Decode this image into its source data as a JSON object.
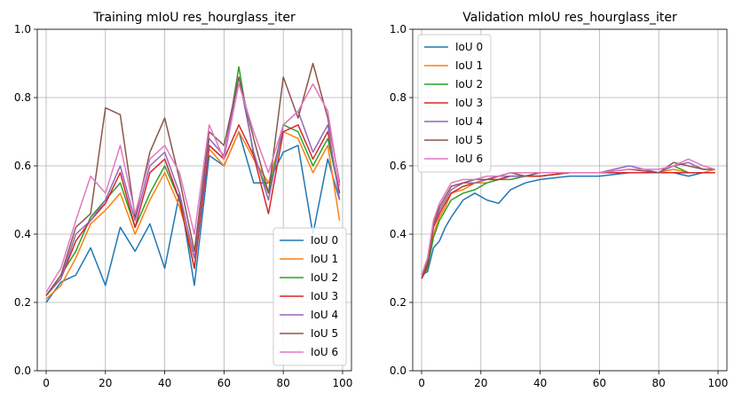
{
  "chart_data": [
    {
      "type": "line",
      "title": "Training mIoU res_hourglass_iter",
      "xlim": [
        -3,
        103
      ],
      "ylim": [
        0,
        1
      ],
      "xticks": [
        0,
        20,
        40,
        60,
        80,
        100
      ],
      "yticks": [
        0.0,
        0.2,
        0.4,
        0.6,
        0.8,
        1.0
      ],
      "ytick_labels": [
        "0.0",
        "0.2",
        "0.4",
        "0.6",
        "0.8",
        "1.0"
      ],
      "grid": true,
      "legend_position": "lower-right",
      "x": [
        0,
        5,
        10,
        15,
        20,
        25,
        30,
        35,
        40,
        45,
        50,
        55,
        60,
        65,
        70,
        75,
        80,
        85,
        90,
        95,
        99
      ],
      "series": [
        {
          "name": "IoU 0",
          "color": "#1f77b4",
          "values": [
            0.2,
            0.26,
            0.28,
            0.36,
            0.25,
            0.42,
            0.35,
            0.43,
            0.3,
            0.52,
            0.25,
            0.63,
            0.6,
            0.7,
            0.55,
            0.55,
            0.64,
            0.66,
            0.4,
            0.62,
            0.5
          ]
        },
        {
          "name": "IoU 1",
          "color": "#ff7f0e",
          "values": [
            0.21,
            0.25,
            0.33,
            0.43,
            0.47,
            0.52,
            0.4,
            0.5,
            0.58,
            0.48,
            0.33,
            0.65,
            0.6,
            0.7,
            0.62,
            0.55,
            0.7,
            0.68,
            0.58,
            0.66,
            0.44
          ]
        },
        {
          "name": "IoU 2",
          "color": "#2ca02c",
          "values": [
            0.22,
            0.28,
            0.35,
            0.45,
            0.5,
            0.55,
            0.42,
            0.52,
            0.6,
            0.5,
            0.3,
            0.66,
            0.62,
            0.89,
            0.63,
            0.52,
            0.72,
            0.7,
            0.6,
            0.68,
            0.52
          ]
        },
        {
          "name": "IoU 3",
          "color": "#d62728",
          "values": [
            0.22,
            0.27,
            0.38,
            0.44,
            0.49,
            0.58,
            0.42,
            0.58,
            0.62,
            0.5,
            0.3,
            0.66,
            0.62,
            0.72,
            0.63,
            0.46,
            0.7,
            0.72,
            0.62,
            0.7,
            0.52
          ]
        },
        {
          "name": "IoU 4",
          "color": "#9467bd",
          "values": [
            0.22,
            0.27,
            0.4,
            0.44,
            0.5,
            0.6,
            0.44,
            0.6,
            0.64,
            0.52,
            0.33,
            0.68,
            0.63,
            0.86,
            0.64,
            0.5,
            0.72,
            0.76,
            0.64,
            0.72,
            0.5
          ]
        },
        {
          "name": "IoU 5",
          "color": "#8c564b",
          "values": [
            0.22,
            0.28,
            0.42,
            0.46,
            0.77,
            0.75,
            0.45,
            0.64,
            0.74,
            0.56,
            0.35,
            0.7,
            0.66,
            0.86,
            0.68,
            0.52,
            0.86,
            0.74,
            0.9,
            0.74,
            0.55
          ]
        },
        {
          "name": "IoU 6",
          "color": "#e377c2",
          "values": [
            0.23,
            0.3,
            0.44,
            0.57,
            0.52,
            0.66,
            0.46,
            0.62,
            0.66,
            0.58,
            0.4,
            0.72,
            0.62,
            0.84,
            0.7,
            0.58,
            0.72,
            0.76,
            0.84,
            0.76,
            0.54
          ]
        }
      ]
    },
    {
      "type": "line",
      "title": "Validation mIoU res_hourglass_iter",
      "xlim": [
        -3,
        103
      ],
      "ylim": [
        0,
        1
      ],
      "xticks": [
        0,
        20,
        40,
        60,
        80,
        100
      ],
      "yticks": [
        0.0,
        0.2,
        0.4,
        0.6,
        0.8,
        1.0
      ],
      "ytick_labels": [
        "0.0",
        "0.2",
        "0.4",
        "0.6",
        "0.8",
        "1.0"
      ],
      "grid": true,
      "legend_position": "upper-left",
      "x": [
        0,
        2,
        4,
        6,
        8,
        10,
        14,
        18,
        22,
        26,
        30,
        35,
        40,
        50,
        60,
        70,
        80,
        85,
        90,
        95,
        99
      ],
      "series": [
        {
          "name": "IoU 0",
          "color": "#1f77b4",
          "values": [
            0.28,
            0.29,
            0.36,
            0.38,
            0.42,
            0.45,
            0.5,
            0.52,
            0.5,
            0.49,
            0.53,
            0.55,
            0.56,
            0.57,
            0.57,
            0.58,
            0.58,
            0.58,
            0.57,
            0.58,
            0.58
          ]
        },
        {
          "name": "IoU 1",
          "color": "#ff7f0e",
          "values": [
            0.28,
            0.31,
            0.4,
            0.45,
            0.48,
            0.52,
            0.53,
            0.55,
            0.55,
            0.56,
            0.57,
            0.57,
            0.57,
            0.58,
            0.58,
            0.58,
            0.58,
            0.59,
            0.58,
            0.58,
            0.59
          ]
        },
        {
          "name": "IoU 2",
          "color": "#2ca02c",
          "values": [
            0.27,
            0.3,
            0.39,
            0.44,
            0.47,
            0.5,
            0.52,
            0.53,
            0.55,
            0.56,
            0.56,
            0.57,
            0.57,
            0.58,
            0.58,
            0.58,
            0.58,
            0.6,
            0.58,
            0.58,
            0.58
          ]
        },
        {
          "name": "IoU 3",
          "color": "#d62728",
          "values": [
            0.27,
            0.31,
            0.42,
            0.46,
            0.49,
            0.52,
            0.54,
            0.55,
            0.56,
            0.56,
            0.57,
            0.57,
            0.57,
            0.58,
            0.58,
            0.58,
            0.58,
            0.58,
            0.58,
            0.58,
            0.58
          ]
        },
        {
          "name": "IoU 4",
          "color": "#9467bd",
          "values": [
            0.28,
            0.32,
            0.43,
            0.47,
            0.5,
            0.53,
            0.55,
            0.55,
            0.56,
            0.57,
            0.57,
            0.57,
            0.58,
            0.58,
            0.58,
            0.6,
            0.58,
            0.6,
            0.61,
            0.59,
            0.59
          ]
        },
        {
          "name": "IoU 5",
          "color": "#8c564b",
          "values": [
            0.28,
            0.32,
            0.43,
            0.48,
            0.51,
            0.54,
            0.55,
            0.56,
            0.56,
            0.57,
            0.58,
            0.57,
            0.58,
            0.58,
            0.58,
            0.59,
            0.58,
            0.61,
            0.6,
            0.59,
            0.59
          ]
        },
        {
          "name": "IoU 6",
          "color": "#e377c2",
          "values": [
            0.28,
            0.33,
            0.44,
            0.49,
            0.52,
            0.55,
            0.56,
            0.56,
            0.57,
            0.57,
            0.58,
            0.58,
            0.58,
            0.58,
            0.58,
            0.59,
            0.59,
            0.6,
            0.62,
            0.6,
            0.59
          ]
        }
      ]
    }
  ]
}
